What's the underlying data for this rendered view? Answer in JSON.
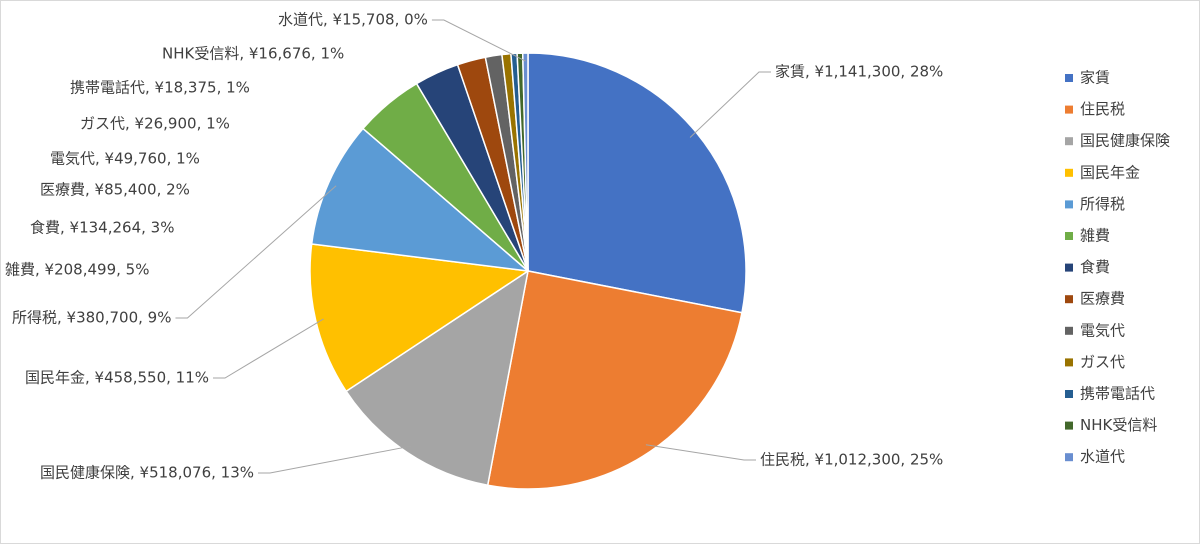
{
  "chart_data": {
    "type": "pie",
    "categories": [
      "家賃",
      "住民税",
      "国民健康保険",
      "国民年金",
      "所得税",
      "雑費",
      "食費",
      "医療費",
      "電気代",
      "ガス代",
      "携帯電話代",
      "NHK受信料",
      "水道代"
    ],
    "values": [
      1141300,
      1012300,
      518076,
      458550,
      380700,
      208499,
      134264,
      85400,
      49760,
      26900,
      18375,
      16676,
      15708
    ],
    "value_labels": [
      "家賃, ¥1,141,300, 28%",
      "住民税, ¥1,012,300, 25%",
      "国民健康保険, ¥518,076, 13%",
      "国民年金, ¥458,550, 11%",
      "所得税, ¥380,700, 9%",
      "雑費, ¥208,499, 5%",
      "食費, ¥134,264, 3%",
      "医療費, ¥85,400, 2%",
      "電気代, ¥49,760, 1%",
      "ガス代, ¥26,900, 1%",
      "携帯電話代, ¥18,375, 1%",
      "NHK受信料, ¥16,676, 1%",
      "水道代, ¥15,708, 0%"
    ],
    "colors": [
      "#4472c4",
      "#ed7d31",
      "#a5a5a5",
      "#ffc000",
      "#5b9bd5",
      "#70ad47",
      "#264478",
      "#9e480e",
      "#636363",
      "#997300",
      "#255e91",
      "#43682b",
      "#698ed0"
    ],
    "legend": "right"
  }
}
